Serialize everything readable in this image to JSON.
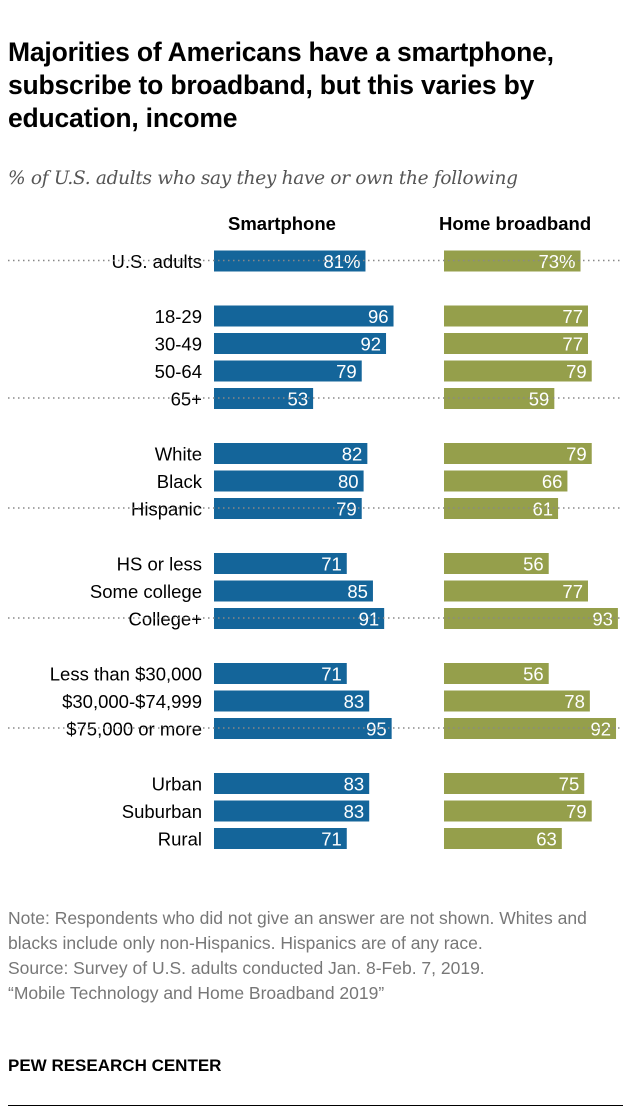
{
  "title": "Majorities of Americans have a smartphone, subscribe to broadband, but this varies by education, income",
  "subtitle": "% of U.S. adults who say they have or own the following",
  "notes": [
    "Note: Respondents who did not give an answer are not shown. Whites and blacks include only non-Hispanics. Hispanics are of any race.",
    "Source: Survey of U.S. adults conducted Jan. 8-Feb. 7, 2019.",
    "“Mobile Technology and Home Broadband 2019”"
  ],
  "brand": "PEW RESEARCH CENTER",
  "chart_data": {
    "type": "bar",
    "orientation": "horizontal",
    "title": "Majorities of Americans have a smartphone, subscribe to broadband, but this varies by education, income",
    "colors": {
      "Smartphone": "#14659a",
      "Home broadband": "#959f4b"
    },
    "groups": [
      {
        "categories": [
          "U.S. adults"
        ],
        "labels": [
          "81%",
          "73%"
        ]
      },
      {
        "categories": [
          "18-29",
          "30-49",
          "50-64",
          "65+"
        ]
      },
      {
        "categories": [
          "White",
          "Black",
          "Hispanic"
        ]
      },
      {
        "categories": [
          "HS or less",
          "Some college",
          "College+"
        ]
      },
      {
        "categories": [
          "Less than $30,000",
          "$30,000-$74,999",
          "$75,000 or more"
        ]
      },
      {
        "categories": [
          "Urban",
          "Suburban",
          "Rural"
        ]
      }
    ],
    "categories": [
      "U.S. adults",
      "18-29",
      "30-49",
      "50-64",
      "65+",
      "White",
      "Black",
      "Hispanic",
      "HS or less",
      "Some college",
      "College+",
      "Less than $30,000",
      "$30,000-$74,999",
      "$75,000 or more",
      "Urban",
      "Suburban",
      "Rural"
    ],
    "series": [
      {
        "name": "Smartphone",
        "values": [
          81,
          96,
          92,
          79,
          53,
          82,
          80,
          79,
          71,
          85,
          91,
          71,
          83,
          95,
          83,
          83,
          71
        ]
      },
      {
        "name": "Home broadband",
        "values": [
          73,
          77,
          77,
          79,
          59,
          79,
          66,
          61,
          56,
          77,
          93,
          56,
          78,
          92,
          75,
          79,
          63
        ]
      }
    ],
    "xlim": [
      0,
      100
    ]
  }
}
